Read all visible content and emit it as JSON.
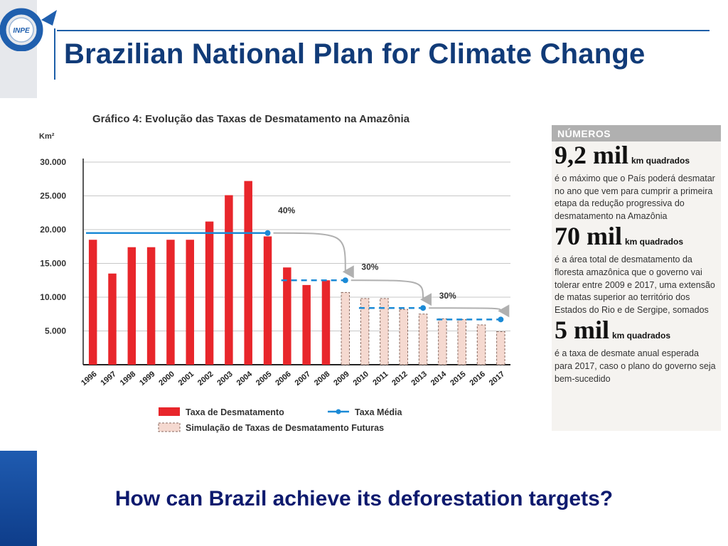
{
  "slide": {
    "title": "Brazilian National Plan for Climate Change",
    "logo_text": "INPE",
    "question": "How can Brazil achieve its deforestation targets?"
  },
  "chart_data": {
    "type": "bar",
    "title": "Gráfico 4: Evolução das Taxas de Desmatamento na Amazônia",
    "ylabel": "Km²",
    "ylim": [
      0,
      30000
    ],
    "yticks": [
      "5.000",
      "10.000",
      "15.000",
      "20.000",
      "25.000",
      "30.000"
    ],
    "ytick_values": [
      5000,
      10000,
      15000,
      20000,
      25000,
      30000
    ],
    "grid": true,
    "categories": [
      "1996",
      "1997",
      "1998",
      "1999",
      "2000",
      "2001",
      "2002",
      "2003",
      "2004",
      "2005",
      "2006",
      "2007",
      "2008",
      "2009",
      "2010",
      "2011",
      "2012",
      "2013",
      "2014",
      "2015",
      "2016",
      "2017"
    ],
    "series": [
      {
        "name": "Taxa de Desmatamento",
        "color": "#e8262b",
        "values": [
          18500,
          13500,
          17400,
          17400,
          18500,
          18500,
          21200,
          25100,
          27200,
          19000,
          14400,
          11800,
          12500,
          null,
          null,
          null,
          null,
          null,
          null,
          null,
          null,
          null
        ]
      },
      {
        "name": "Simulação de Taxas de Desmatamento Futuras",
        "color": "#f5d9d0",
        "values": [
          null,
          null,
          null,
          null,
          null,
          null,
          null,
          null,
          null,
          null,
          null,
          null,
          null,
          10700,
          9800,
          9800,
          8200,
          7500,
          6800,
          6700,
          5900,
          4900
        ]
      },
      {
        "name": "Taxa Média",
        "color": "#1b8ad6",
        "segments": [
          {
            "from": "1996",
            "to": "2005",
            "value": 19500,
            "style": "solid"
          },
          {
            "from": "2006",
            "to": "2009",
            "value": 12500,
            "style": "dashed"
          },
          {
            "from": "2010",
            "to": "2013",
            "value": 8400,
            "style": "dashed"
          },
          {
            "from": "2014",
            "to": "2017",
            "value": 6700,
            "style": "dashed"
          }
        ]
      }
    ],
    "annotations": [
      "40%",
      "30%",
      "30%"
    ],
    "legend": [
      "Taxa de Desmatamento",
      "Taxa Média",
      "Simulação de Taxas de Desmatamento Futuras"
    ],
    "legend_position": "bottom"
  },
  "news": {
    "header": "NÚMEROS",
    "items": [
      {
        "big": "9,2 mil",
        "unit": "km quadrados",
        "text": "é o máximo que o País poderá desmatar no ano que vem para cumprir a primeira etapa da redução progressiva do desmatamento na Amazônia"
      },
      {
        "big": "70 mil",
        "unit": "km quadrados",
        "text": "é a área total de desmatamento da floresta amazônica que o governo vai tolerar entre 2009 e 2017, uma extensão de matas superior ao território dos Estados do Rio e de Sergipe, somados"
      },
      {
        "big": "5 mil",
        "unit": "km quadrados",
        "text": "é a taxa de desmate anual esperada para 2017, caso o plano do governo seja bem-sucedido"
      }
    ]
  }
}
